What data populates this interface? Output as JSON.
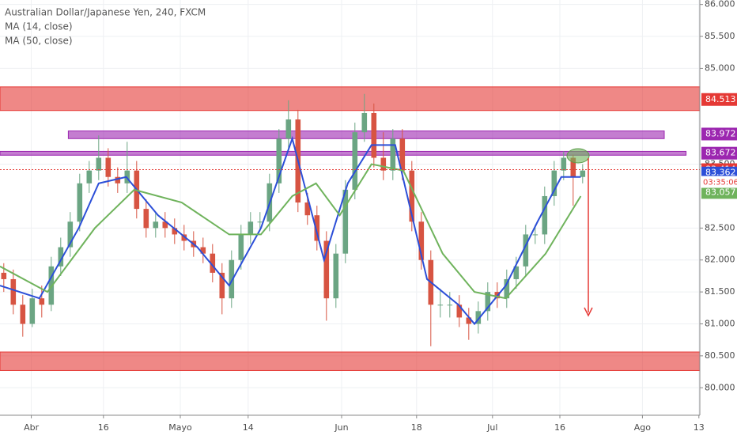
{
  "chart_data": {
    "type": "candlestick",
    "title": "Australian Dollar/Japanese Yen, 240, FXCM",
    "xlim": [
      -0.4,
      73.35
    ],
    "ylim": [
      79.57,
      86.07
    ],
    "xticks": [
      {
        "value": 2.9,
        "label": "Abr"
      },
      {
        "value": 10.5,
        "label": "16"
      },
      {
        "value": 18.6,
        "label": "Mayo"
      },
      {
        "value": 25.75,
        "label": "14"
      },
      {
        "value": 35.6,
        "label": "Jun"
      },
      {
        "value": 43.5,
        "label": "18"
      },
      {
        "value": 51.5,
        "label": "Jul"
      },
      {
        "value": 58.6,
        "label": "16"
      },
      {
        "value": 67.3,
        "label": "Ago"
      },
      {
        "value": 73.25,
        "label": "13"
      }
    ],
    "yticks": [
      {
        "value": 80,
        "label": "80.000"
      },
      {
        "value": 80.5,
        "label": "80.500"
      },
      {
        "value": 81,
        "label": "81.000"
      },
      {
        "value": 81.5,
        "label": "81.500"
      },
      {
        "value": 82,
        "label": "82.000"
      },
      {
        "value": 82.5,
        "label": "82.500"
      },
      {
        "value": 83.5,
        "label": "83.500"
      },
      {
        "value": 85,
        "label": "85.000"
      },
      {
        "value": 85.5,
        "label": "85.500"
      },
      {
        "value": 86,
        "label": "86.000"
      }
    ],
    "grid": true,
    "up_color": "#6ba583",
    "down_color": "#d75442",
    "ohlc": {
      "x": [
        0,
        1,
        2,
        3,
        4,
        5,
        6,
        7,
        8,
        9,
        10,
        11,
        12,
        13,
        14,
        15,
        16,
        17,
        18,
        19,
        20,
        21,
        22,
        23,
        24,
        25,
        26,
        27,
        28,
        29,
        30,
        31,
        32,
        33,
        34,
        35,
        36,
        37,
        38,
        39,
        40,
        41,
        42,
        43,
        44,
        45,
        46,
        47,
        48,
        49,
        50,
        51,
        52,
        53,
        54,
        55,
        56,
        57,
        58,
        59,
        60,
        61
      ],
      "open": [
        81.8,
        81.7,
        81.3,
        81.0,
        81.4,
        81.3,
        81.9,
        82.2,
        82.6,
        83.2,
        83.4,
        83.6,
        83.3,
        83.2,
        83.4,
        82.8,
        82.5,
        82.6,
        82.5,
        82.4,
        82.3,
        82.2,
        82.1,
        81.8,
        81.4,
        82.0,
        82.4,
        82.6,
        82.6,
        83.2,
        83.9,
        84.2,
        82.9,
        82.7,
        82.3,
        81.4,
        82.1,
        83.1,
        84.0,
        84.3,
        83.6,
        83.4,
        83.9,
        83.4,
        82.6,
        82.0,
        81.3,
        81.3,
        81.3,
        81.1,
        81.0,
        81.2,
        81.5,
        81.4,
        81.7,
        81.9,
        82.4,
        82.4,
        83.0,
        83.4,
        83.6,
        83.3
      ],
      "high": [
        81.95,
        81.85,
        81.45,
        81.55,
        81.6,
        82.05,
        82.35,
        82.75,
        83.35,
        83.55,
        83.95,
        83.75,
        83.45,
        83.85,
        83.55,
        82.95,
        82.75,
        82.75,
        82.65,
        82.55,
        82.45,
        82.35,
        82.25,
        81.95,
        82.15,
        82.55,
        82.75,
        82.75,
        83.35,
        84.05,
        84.5,
        84.35,
        83.05,
        82.85,
        82.45,
        82.25,
        83.25,
        84.15,
        84.6,
        84.45,
        84.0,
        84.05,
        84.05,
        83.55,
        82.75,
        82.15,
        81.55,
        81.5,
        81.45,
        81.25,
        81.35,
        81.65,
        81.65,
        81.85,
        82.05,
        82.55,
        82.55,
        83.15,
        83.55,
        83.7,
        83.65,
        83.5
      ],
      "low": [
        81.5,
        81.15,
        80.8,
        80.95,
        81.1,
        81.2,
        81.75,
        82.05,
        82.45,
        83.05,
        83.25,
        83.15,
        83.05,
        83.05,
        82.65,
        82.35,
        82.35,
        82.35,
        82.25,
        82.15,
        82.05,
        81.95,
        81.65,
        81.15,
        81.25,
        81.85,
        82.25,
        82.45,
        82.45,
        83.05,
        83.75,
        82.75,
        82.55,
        82.15,
        81.05,
        81.25,
        81.95,
        82.95,
        83.85,
        83.45,
        83.25,
        83.25,
        83.25,
        82.45,
        81.85,
        80.65,
        81.1,
        81.1,
        80.95,
        80.75,
        80.85,
        81.05,
        81.25,
        81.25,
        81.55,
        81.75,
        82.25,
        82.25,
        82.85,
        83.25,
        82.85,
        83.2
      ],
      "close": [
        81.7,
        81.3,
        81.0,
        81.4,
        81.3,
        81.9,
        82.2,
        82.6,
        83.2,
        83.4,
        83.6,
        83.3,
        83.2,
        83.4,
        82.8,
        82.5,
        82.6,
        82.5,
        82.4,
        82.3,
        82.2,
        82.1,
        81.8,
        81.4,
        82.0,
        82.4,
        82.6,
        82.6,
        83.2,
        83.9,
        84.2,
        82.9,
        82.7,
        82.3,
        81.4,
        82.1,
        83.1,
        84.0,
        84.3,
        83.6,
        83.4,
        83.9,
        83.4,
        82.6,
        82.0,
        81.3,
        81.3,
        81.3,
        81.1,
        81.0,
        81.2,
        81.5,
        81.4,
        81.7,
        81.9,
        82.4,
        82.4,
        83.0,
        83.4,
        83.6,
        83.3,
        83.4
      ]
    },
    "series": [
      {
        "name": "MA (14, close)",
        "color": "#2c4fd8",
        "x": [
          -0.4,
          3.75,
          7.9,
          10,
          12.9,
          16.25,
          20.4,
          23.75,
          27.1,
          30.4,
          33.75,
          36.25,
          38.75,
          41.25,
          44.6,
          47.9,
          49.6,
          52.9,
          56.25,
          58.75,
          60.8
        ],
        "values": [
          81.6,
          81.4,
          82.5,
          83.2,
          83.3,
          82.7,
          82.2,
          81.6,
          82.5,
          83.9,
          82.0,
          83.2,
          83.8,
          83.8,
          81.7,
          81.3,
          81.0,
          81.6,
          82.6,
          83.3,
          83.3
        ]
      },
      {
        "name": "MA (50, close)",
        "color": "#6fb35c",
        "x": [
          -0.4,
          4.6,
          9.6,
          13.75,
          18.75,
          23.75,
          27.1,
          30.4,
          32.9,
          35.4,
          38.75,
          42.1,
          46.25,
          49.6,
          52.9,
          57.1,
          60.8
        ],
        "values": [
          81.9,
          81.5,
          82.5,
          83.1,
          82.9,
          82.4,
          82.4,
          83.0,
          83.2,
          82.7,
          83.5,
          83.4,
          82.1,
          81.5,
          81.4,
          82.1,
          83.0
        ]
      }
    ],
    "zones": [
      {
        "low": 84.34,
        "high": 84.71,
        "x": [
          -0.4,
          73.35
        ],
        "color": "#e53935"
      },
      {
        "low": 80.27,
        "high": 80.56,
        "x": [
          -0.4,
          73.35
        ],
        "color": "#e53935"
      },
      {
        "low": 83.9,
        "high": 84.02,
        "x": [
          6.8,
          69.6
        ],
        "color": "#9c27b0"
      },
      {
        "low": 83.64,
        "high": 83.7,
        "x": [
          -0.4,
          71.9
        ],
        "color": "#9c27b0"
      }
    ],
    "price_labels": [
      {
        "value": 84.513,
        "color": "#e53935"
      },
      {
        "value": 83.972,
        "color": "#9c27b0"
      },
      {
        "value": 83.672,
        "color": "#9c27b0"
      },
      {
        "value": 83.414,
        "color": "#e53935"
      },
      {
        "value": 83.362,
        "color": "#2c4fd8"
      },
      {
        "value": 83.057,
        "color": "#6fb35c"
      }
    ],
    "current_price": {
      "value": 83.414,
      "timer": "03:35:06",
      "color": "#e53935"
    }
  }
}
